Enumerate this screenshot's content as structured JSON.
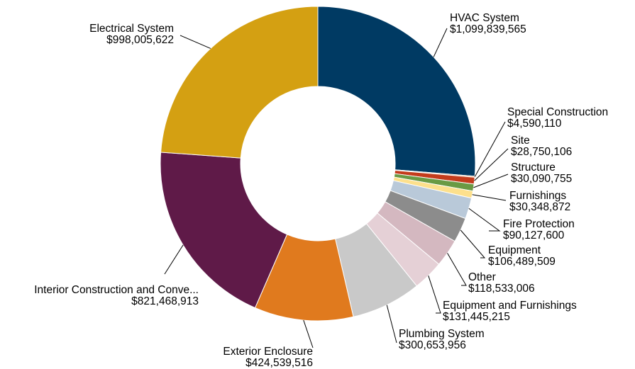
{
  "chart_data": {
    "type": "pie",
    "donut": true,
    "slices": [
      {
        "label": "HVAC System",
        "value": 1099839565,
        "value_label": "$1,099,839,565",
        "color": "#003a63"
      },
      {
        "label": "Special Construction",
        "value": 4590110,
        "value_label": "$4,590,110",
        "color": "#e8731c"
      },
      {
        "label": "Site",
        "value": 28750106,
        "value_label": "$28,750,106",
        "color": "#c43c1c"
      },
      {
        "label": "Structure",
        "value": 30090755,
        "value_label": "$30,090,755",
        "color": "#6a9a44"
      },
      {
        "label": "Furnishings",
        "value": 30348872,
        "value_label": "$30,348,872",
        "color": "#fde08c"
      },
      {
        "label": "Fire Protection",
        "value": 90127600,
        "value_label": "$90,127,600",
        "color": "#b9c9d9"
      },
      {
        "label": "Equipment",
        "value": 106489509,
        "value_label": "$106,489,509",
        "color": "#8c8c8c"
      },
      {
        "label": "Other",
        "value": 118533006,
        "value_label": "$118,533,006",
        "color": "#d4b8c0"
      },
      {
        "label": "Equipment and Furnishings",
        "value": 131445215,
        "value_label": "$131,445,215",
        "color": "#e5d0d6"
      },
      {
        "label": "Plumbing System",
        "value": 300653956,
        "value_label": "$300,653,956",
        "color": "#c9c9c9"
      },
      {
        "label": "Exterior Enclosure",
        "value": 424539516,
        "value_label": "$424,539,516",
        "color": "#e07a1e"
      },
      {
        "label": "Interior Construction and Conve...",
        "value": 821468913,
        "value_label": "$821,468,913",
        "color": "#5f1a48"
      },
      {
        "label": "Electrical System",
        "value": 998005622,
        "value_label": "$998,005,622",
        "color": "#d4a012"
      }
    ]
  }
}
